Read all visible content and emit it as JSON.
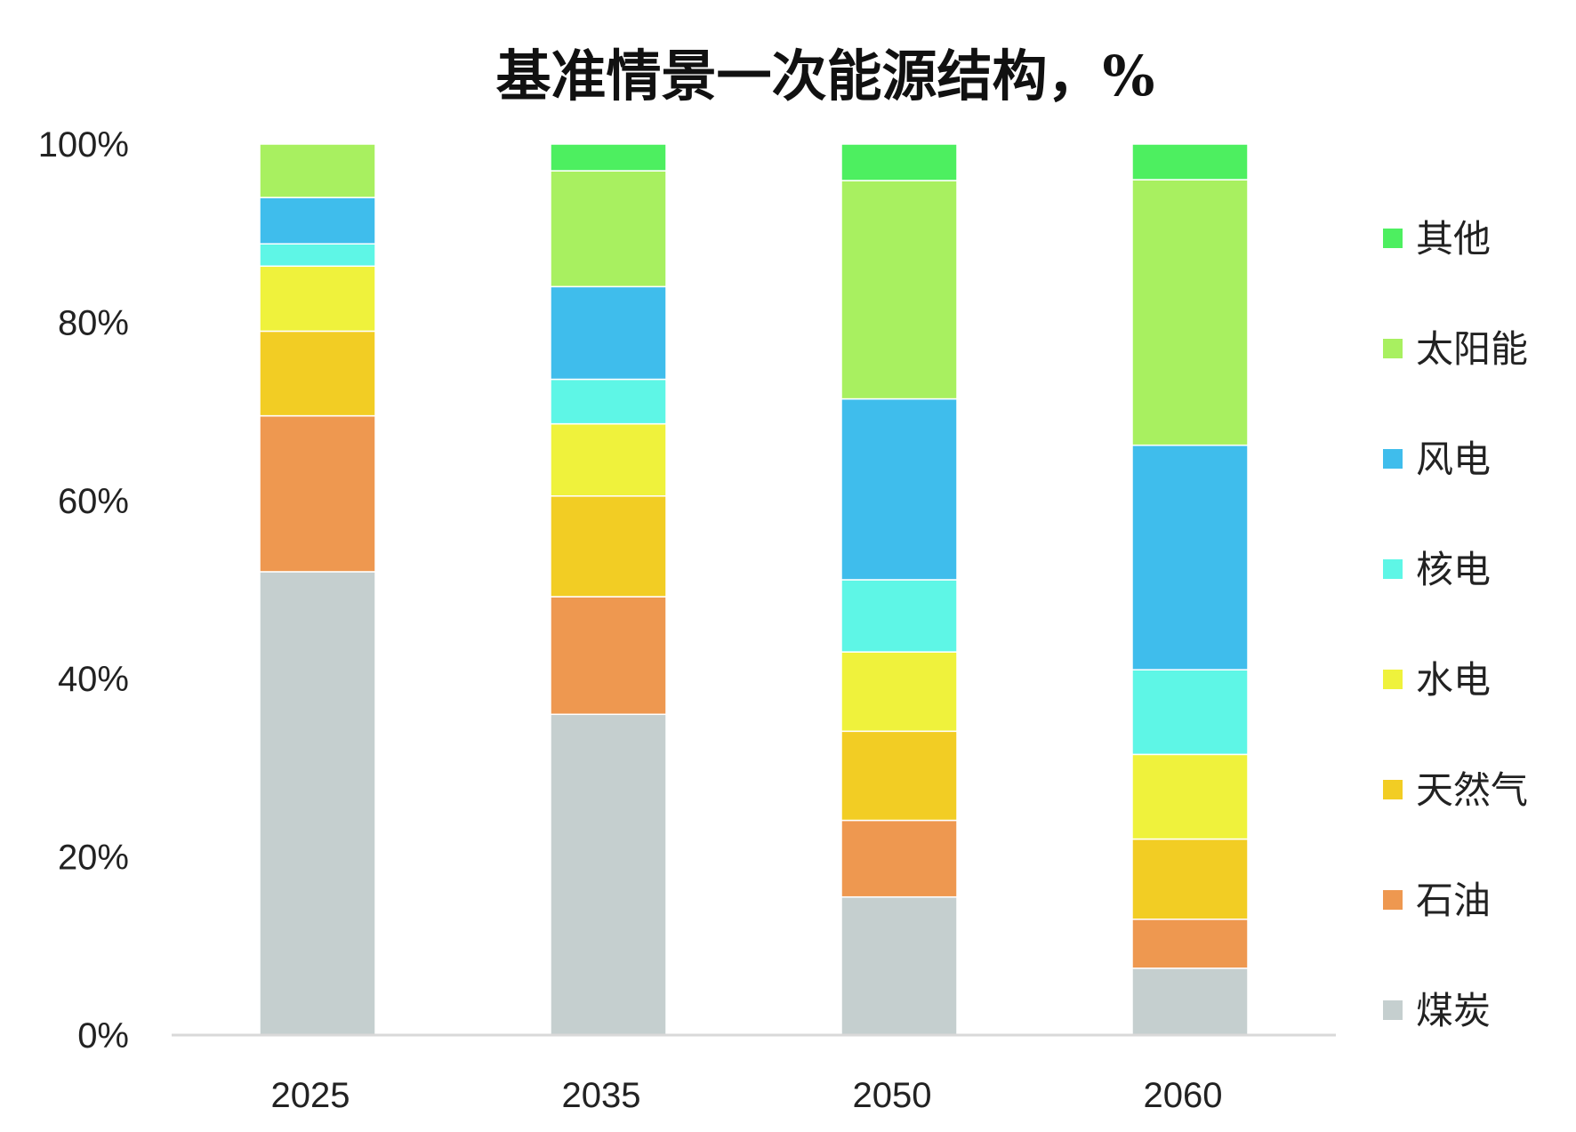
{
  "chart_data": {
    "type": "bar",
    "stacked": true,
    "title": "基准情景一次能源结构，%",
    "xlabel": "",
    "ylabel": "",
    "ylim": [
      0,
      100
    ],
    "y_ticks": [
      "0%",
      "20%",
      "40%",
      "60%",
      "80%",
      "100%"
    ],
    "categories": [
      "2025",
      "2035",
      "2050",
      "2060"
    ],
    "grid": false,
    "legend_position": "right",
    "series": [
      {
        "name": "煤炭",
        "color": "#c5cfcf",
        "values": [
          52,
          36,
          15.5,
          7.5
        ]
      },
      {
        "name": "石油",
        "color": "#ee9850",
        "values": [
          17.5,
          13.2,
          8.6,
          5.5
        ]
      },
      {
        "name": "天然气",
        "color": "#f2cd24",
        "values": [
          9.5,
          11.3,
          10,
          9
        ]
      },
      {
        "name": "水电",
        "color": "#eff23c",
        "values": [
          7.3,
          8.1,
          8.9,
          9.5
        ]
      },
      {
        "name": "核电",
        "color": "#5ef6e6",
        "values": [
          2.5,
          5,
          8.1,
          9.5
        ]
      },
      {
        "name": "风电",
        "color": "#3fbdec",
        "values": [
          5.2,
          10.4,
          20.3,
          25.2
        ]
      },
      {
        "name": "太阳能",
        "color": "#a8f060",
        "values": [
          6,
          13,
          24.5,
          29.8
        ]
      },
      {
        "name": "其他",
        "color": "#4def60",
        "values": [
          0,
          3,
          4.1,
          4
        ]
      }
    ]
  }
}
